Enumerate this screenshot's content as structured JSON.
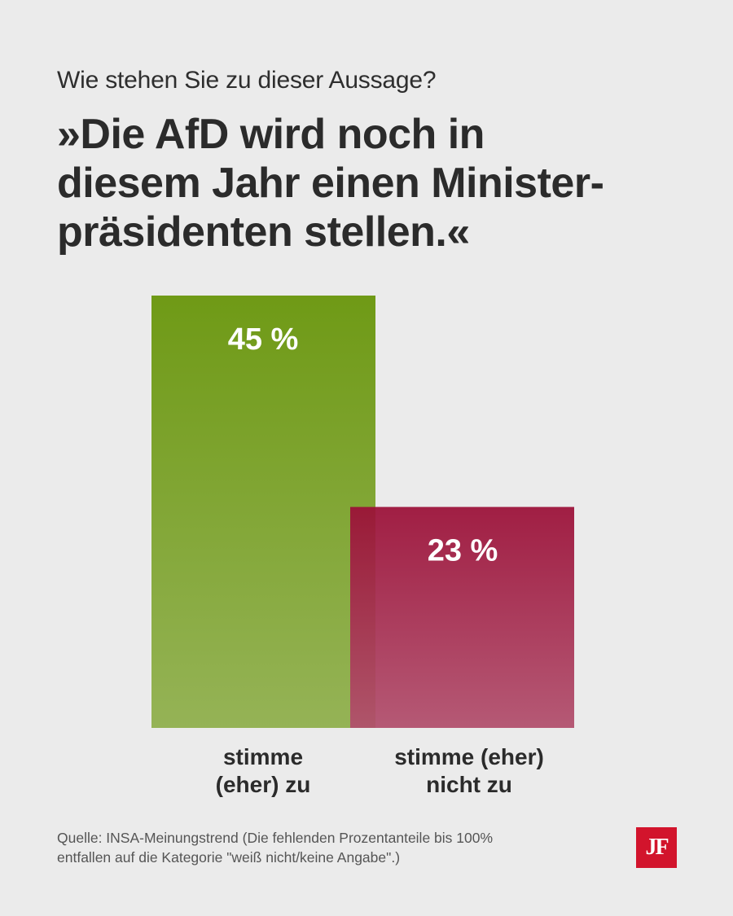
{
  "question": "Wie stehen Sie zu dieser Aussage?",
  "statement": "»Die AfD wird noch in\ndiesem Jahr einen Minister-\npräsidenten stellen.«",
  "chart_data": {
    "type": "bar",
    "categories": [
      "stimme\n(eher) zu",
      "stimme (eher)\nnicht zu"
    ],
    "values": [
      45,
      23
    ],
    "value_labels": [
      "45 %",
      "23 %"
    ],
    "colors": [
      "#6f9a16",
      "#9e1038"
    ],
    "ylim": [
      0,
      45
    ],
    "grid": false
  },
  "source": "Quelle: INSA-Meinungstrend (Die fehlenden Prozentanteile bis 100%\nentfallen auf die Kategorie \"weiß nicht/keine Angabe\".)",
  "logo": "JF"
}
